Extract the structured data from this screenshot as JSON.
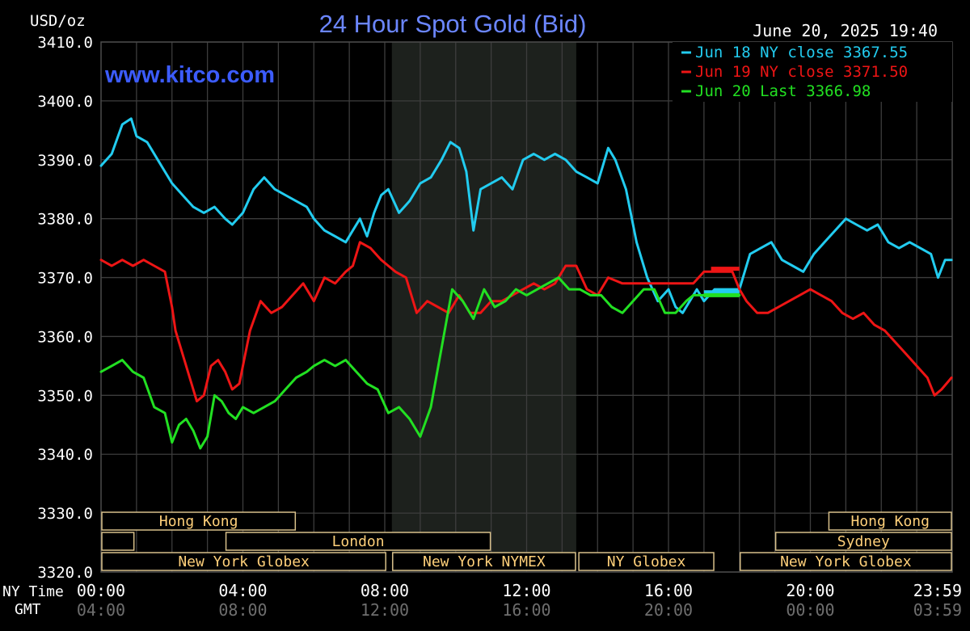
{
  "chart_data": {
    "type": "line",
    "title": "24 Hour Spot Gold (Bid)",
    "ylabel": "USD/oz",
    "watermark": "www.kitco.com",
    "timestamp": "June 20, 2025 19:40",
    "ylim": [
      3320,
      3410
    ],
    "yticks": [
      "3410.0",
      "3400.0",
      "3390.0",
      "3380.0",
      "3370.0",
      "3360.0",
      "3350.0",
      "3340.0",
      "3330.0",
      "3320.0"
    ],
    "ytick_values": [
      3410,
      3400,
      3390,
      3380,
      3370,
      3360,
      3350,
      3340,
      3330,
      3320
    ],
    "xlim": [
      0,
      24
    ],
    "xaxis_label_ny": "NY Time",
    "xaxis_label_gmt": "GMT",
    "xticks": [
      {
        "hour": 0,
        "ny": "00:00",
        "gmt": "04:00"
      },
      {
        "hour": 4,
        "ny": "04:00",
        "gmt": "08:00"
      },
      {
        "hour": 8,
        "ny": "08:00",
        "gmt": "12:00"
      },
      {
        "hour": 12,
        "ny": "12:00",
        "gmt": "16:00"
      },
      {
        "hour": 16,
        "ny": "16:00",
        "gmt": "20:00"
      },
      {
        "hour": 20,
        "ny": "20:00",
        "gmt": "00:00"
      },
      {
        "hour": 23.98,
        "ny": "23:59",
        "gmt": "03:59"
      }
    ],
    "grid": true,
    "legend_position": "top-right",
    "shaded_session": [
      8.2,
      13.4
    ],
    "sessions": [
      {
        "label": "Hong Kong",
        "start": 0,
        "end": 5.5,
        "row": 0
      },
      {
        "label": "Hong Kong",
        "start": 20.5,
        "end": 24,
        "row": 0
      },
      {
        "label": "",
        "start": 0,
        "end": 0.95,
        "row": 1
      },
      {
        "label": "London",
        "start": 3.5,
        "end": 11.0,
        "row": 1
      },
      {
        "label": "Sydney",
        "start": 19.0,
        "end": 24,
        "row": 1
      },
      {
        "label": "New York Globex",
        "start": 0,
        "end": 8.05,
        "row": 2
      },
      {
        "label": "New York NYMEX",
        "start": 8.2,
        "end": 13.4,
        "row": 2
      },
      {
        "label": "NY Globex",
        "start": 13.45,
        "end": 17.3,
        "row": 2
      },
      {
        "label": "New York Globex",
        "start": 18.0,
        "end": 24,
        "row": 2
      }
    ],
    "series": [
      {
        "name": "Jun 18 NY close 3367.55",
        "color": "#22ccf0",
        "x": [
          0,
          0.3,
          0.6,
          0.85,
          1.0,
          1.3,
          1.6,
          1.8,
          2.0,
          2.3,
          2.6,
          2.9,
          3.2,
          3.5,
          3.7,
          4.0,
          4.3,
          4.6,
          4.9,
          5.2,
          5.5,
          5.8,
          6.0,
          6.3,
          6.6,
          6.9,
          7.1,
          7.3,
          7.5,
          7.7,
          7.9,
          8.1,
          8.4,
          8.7,
          9.0,
          9.3,
          9.6,
          9.85,
          10.1,
          10.3,
          10.5,
          10.7,
          11.0,
          11.3,
          11.6,
          11.9,
          12.2,
          12.5,
          12.8,
          13.1,
          13.4,
          13.7,
          14.0,
          14.3,
          14.5,
          14.8,
          15.1,
          15.4,
          15.7,
          16.0,
          16.2,
          16.4,
          16.6,
          16.8,
          17.0,
          17.3,
          17.5,
          17.8,
          18.0,
          18.1,
          18.3,
          18.6,
          18.9,
          19.2,
          19.5,
          19.8,
          20.1,
          20.4,
          20.7,
          21.0,
          21.3,
          21.6,
          21.9,
          22.2,
          22.5,
          22.8,
          23.1,
          23.4,
          23.6,
          23.8,
          23.98
        ],
        "y": [
          3389,
          3391,
          3396,
          3397,
          3394,
          3393,
          3390,
          3388,
          3386,
          3384,
          3382,
          3381,
          3382,
          3380,
          3379,
          3381,
          3385,
          3387,
          3385,
          3384,
          3383,
          3382,
          3380,
          3378,
          3377,
          3376,
          3378,
          3380,
          3377,
          3381,
          3384,
          3385,
          3381,
          3383,
          3386,
          3387,
          3390,
          3393,
          3392,
          3388,
          3378,
          3385,
          3386,
          3387,
          3385,
          3390,
          3391,
          3390,
          3391,
          3390,
          3388,
          3387,
          3386,
          3392,
          3390,
          3385,
          3376,
          3370,
          3366,
          3368,
          3365,
          3364,
          3366,
          3368,
          3366,
          3368,
          3368,
          3368,
          3368,
          3370,
          3374,
          3375,
          3376,
          3373,
          3372,
          3371,
          3374,
          3376,
          3378,
          3380,
          3379,
          3378,
          3379,
          3376,
          3375,
          3376,
          3375,
          3374,
          3370,
          3373,
          3373
        ]
      },
      {
        "name": "Jun 19 NY close 3371.50",
        "color": "#ee1515",
        "x": [
          0,
          0.3,
          0.6,
          0.9,
          1.2,
          1.5,
          1.8,
          2.0,
          2.1,
          2.3,
          2.5,
          2.7,
          2.9,
          3.1,
          3.3,
          3.5,
          3.7,
          3.9,
          4.0,
          4.2,
          4.5,
          4.8,
          5.1,
          5.4,
          5.7,
          6.0,
          6.3,
          6.6,
          6.9,
          7.1,
          7.3,
          7.6,
          7.9,
          8.1,
          8.3,
          8.6,
          8.9,
          9.2,
          9.5,
          9.8,
          10.1,
          10.4,
          10.7,
          11.0,
          11.3,
          11.6,
          11.9,
          12.2,
          12.5,
          12.8,
          13.1,
          13.4,
          13.7,
          14.0,
          14.3,
          14.7,
          15.1,
          15.5,
          15.9,
          16.3,
          16.7,
          17.0,
          17.2,
          17.5,
          17.8,
          18.0,
          18.2,
          18.5,
          18.8,
          19.1,
          19.4,
          19.7,
          20.0,
          20.3,
          20.6,
          20.9,
          21.2,
          21.5,
          21.8,
          22.1,
          22.4,
          22.7,
          23.0,
          23.3,
          23.5,
          23.7,
          23.98
        ],
        "y": [
          3373,
          3372,
          3373,
          3372,
          3373,
          3372,
          3371,
          3365,
          3361,
          3357,
          3353,
          3349,
          3350,
          3355,
          3356,
          3354,
          3351,
          3352,
          3355,
          3361,
          3366,
          3364,
          3365,
          3367,
          3369,
          3366,
          3370,
          3369,
          3371,
          3372,
          3376,
          3375,
          3373,
          3372,
          3371,
          3370,
          3364,
          3366,
          3365,
          3364,
          3367,
          3364,
          3364,
          3366,
          3366,
          3367,
          3368,
          3369,
          3368,
          3369,
          3372,
          3372,
          3368,
          3367,
          3370,
          3369,
          3369,
          3369,
          3369,
          3369,
          3369,
          3371,
          3371,
          3371,
          3371,
          3368,
          3366,
          3364,
          3364,
          3365,
          3366,
          3367,
          3368,
          3367,
          3366,
          3364,
          3363,
          3364,
          3362,
          3361,
          3359,
          3357,
          3355,
          3353,
          3350,
          3351,
          3353
        ]
      },
      {
        "name": "Jun 20 Last 3366.98",
        "color": "#22e022",
        "x": [
          0,
          0.3,
          0.6,
          0.9,
          1.2,
          1.5,
          1.8,
          2.0,
          2.2,
          2.4,
          2.6,
          2.8,
          3.0,
          3.2,
          3.4,
          3.6,
          3.8,
          4.0,
          4.3,
          4.6,
          4.9,
          5.2,
          5.5,
          5.8,
          6.0,
          6.3,
          6.6,
          6.9,
          7.2,
          7.5,
          7.8,
          8.1,
          8.4,
          8.7,
          9.0,
          9.3,
          9.6,
          9.9,
          10.2,
          10.5,
          10.8,
          11.1,
          11.4,
          11.7,
          12.0,
          12.3,
          12.6,
          12.9,
          13.2,
          13.5,
          13.8,
          14.1,
          14.4,
          14.7,
          15.0,
          15.3,
          15.6,
          15.9,
          16.2,
          16.5,
          16.7,
          16.9,
          17.1,
          17.4,
          17.7,
          18.0
        ],
        "y": [
          3354,
          3355,
          3356,
          3354,
          3353,
          3348,
          3347,
          3342,
          3345,
          3346,
          3344,
          3341,
          3343,
          3350,
          3349,
          3347,
          3346,
          3348,
          3347,
          3348,
          3349,
          3351,
          3353,
          3354,
          3355,
          3356,
          3355,
          3356,
          3354,
          3352,
          3351,
          3347,
          3348,
          3346,
          3343,
          3348,
          3358,
          3368,
          3366,
          3363,
          3368,
          3365,
          3366,
          3368,
          3367,
          3368,
          3369,
          3370,
          3368,
          3368,
          3367,
          3367,
          3365,
          3364,
          3366,
          3368,
          3368,
          3364,
          3364,
          3366,
          3367,
          3367,
          3367,
          3367,
          3367,
          3367
        ]
      }
    ]
  }
}
